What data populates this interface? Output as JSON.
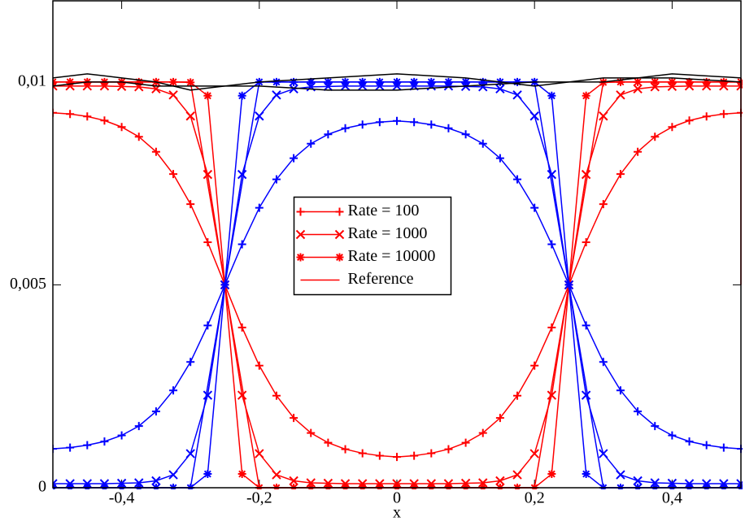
{
  "chart_data": {
    "type": "line",
    "xlabel": "x",
    "xlim": [
      -0.5,
      0.5
    ],
    "ylim": [
      0,
      0.012
    ],
    "xticks": [
      {
        "value": -0.4,
        "label": "-0,4"
      },
      {
        "value": -0.2,
        "label": "-0,2"
      },
      0,
      {
        "value": 0.2,
        "label": "0,2"
      },
      {
        "value": 0.4,
        "label": "0,4"
      }
    ],
    "yticks": [
      0,
      {
        "value": 0.005,
        "label": "0,005"
      },
      {
        "value": 0.01,
        "label": "0,01"
      }
    ],
    "legend": "center",
    "x": [
      -0.5,
      -0.475,
      -0.45,
      -0.425,
      -0.4,
      -0.375,
      -0.35,
      -0.325,
      -0.3,
      -0.275,
      -0.25,
      -0.225,
      -0.2,
      -0.175,
      -0.15,
      -0.125,
      -0.1,
      -0.075,
      -0.05,
      -0.025,
      0,
      0.025,
      0.05,
      0.075,
      0.1,
      0.125,
      0.15,
      0.175,
      0.2,
      0.225,
      0.25,
      0.275,
      0.3,
      0.325,
      0.35,
      0.375,
      0.4,
      0.425,
      0.45,
      0.475,
      0.5
    ],
    "series": [
      {
        "name": "Rate = 100",
        "color": "#ff0000",
        "marker": "plus",
        "values": [
          0.00924,
          0.00921,
          0.00915,
          0.00905,
          0.00889,
          0.00865,
          0.00828,
          0.00773,
          0.00699,
          0.00605,
          0.005,
          0.00395,
          0.00301,
          0.00227,
          0.00172,
          0.00135,
          0.00111,
          0.00095,
          0.00085,
          0.00079,
          0.00076,
          0.00079,
          0.00085,
          0.00095,
          0.00111,
          0.00135,
          0.00172,
          0.00227,
          0.00301,
          0.00395,
          0.005,
          0.00605,
          0.00699,
          0.00773,
          0.00828,
          0.00865,
          0.00889,
          0.00905,
          0.00915,
          0.00921,
          0.00924
        ]
      },
      {
        "name": "Rate = 1000",
        "color": "#ff0000",
        "marker": "x",
        "values": [
          0.0099,
          0.0099,
          0.0099,
          0.0099,
          0.00989,
          0.00988,
          0.00983,
          0.00968,
          0.00916,
          0.00772,
          0.005,
          0.00228,
          0.00084,
          0.00032,
          0.00017,
          0.00012,
          0.00011,
          0.0001,
          0.0001,
          0.0001,
          0.0001,
          0.0001,
          0.0001,
          0.0001,
          0.00011,
          0.00012,
          0.00017,
          0.00032,
          0.00084,
          0.00228,
          0.005,
          0.00772,
          0.00916,
          0.00968,
          0.00983,
          0.00988,
          0.00989,
          0.0099,
          0.0099,
          0.0099,
          0.0099
        ]
      },
      {
        "name": "Rate = 10000",
        "color": "#ff0000",
        "marker": "star",
        "values": [
          0.01,
          0.01,
          0.01,
          0.01,
          0.01,
          0.01,
          0.01,
          0.01,
          0.00999,
          0.00966,
          0.005,
          0.00034,
          0,
          0,
          0,
          0,
          0,
          0,
          0,
          0,
          0,
          0,
          0,
          0,
          0,
          0,
          0,
          0,
          0,
          0.00034,
          0.005,
          0.00966,
          0.00999,
          0.01,
          0.01,
          0.01,
          0.01,
          0.01,
          0.01,
          0.01,
          0.01
        ]
      },
      {
        "name": "Reference",
        "color": "#ff0000",
        "x": [
          -0.5,
          -0.3,
          -0.2,
          0.2,
          0.3,
          0.5,
          0.5
        ],
        "values": [
          0.01,
          0.01,
          0,
          0,
          0.01,
          0.01,
          0.005
        ]
      },
      {
        "color": "#0000ff",
        "marker": "plus",
        "values": [
          0.00096,
          0.00099,
          0.00105,
          0.00114,
          0.00129,
          0.00152,
          0.00188,
          0.0024,
          0.0031,
          0.004,
          0.005,
          0.006,
          0.0069,
          0.0076,
          0.00812,
          0.00848,
          0.00871,
          0.00886,
          0.00895,
          0.00901,
          0.00904,
          0.00901,
          0.00895,
          0.00886,
          0.00871,
          0.00848,
          0.00812,
          0.0076,
          0.0069,
          0.006,
          0.005,
          0.004,
          0.0031,
          0.0024,
          0.00188,
          0.00152,
          0.00129,
          0.00114,
          0.00105,
          0.00099,
          0.00096
        ]
      },
      {
        "color": "#0000ff",
        "marker": "x",
        "values": [
          0.0001,
          0.0001,
          0.0001,
          0.0001,
          0.00011,
          0.00012,
          0.00017,
          0.00032,
          0.00084,
          0.00228,
          0.005,
          0.00772,
          0.00916,
          0.00968,
          0.00983,
          0.00988,
          0.00989,
          0.0099,
          0.0099,
          0.0099,
          0.0099,
          0.0099,
          0.0099,
          0.0099,
          0.00989,
          0.00988,
          0.00983,
          0.00968,
          0.00916,
          0.00772,
          0.005,
          0.00228,
          0.00084,
          0.00032,
          0.00017,
          0.00012,
          0.00011,
          0.0001,
          0.0001,
          0.0001,
          0.0001
        ]
      },
      {
        "color": "#0000ff",
        "marker": "star",
        "values": [
          0,
          0,
          0,
          0,
          0,
          0,
          0,
          0,
          0,
          0.00034,
          0.005,
          0.00966,
          0.01,
          0.01,
          0.01,
          0.01,
          0.01,
          0.01,
          0.01,
          0.01,
          0.01,
          0.01,
          0.01,
          0.01,
          0.01,
          0.01,
          0.01,
          0.01,
          0.01,
          0.00966,
          0.005,
          0.00034,
          0,
          0,
          0,
          0,
          0,
          0,
          0,
          0,
          0
        ]
      },
      {
        "color": "#0000ff",
        "x": [
          -0.5,
          -0.3,
          -0.2,
          0.2,
          0.3,
          0.5
        ],
        "values": [
          0,
          0,
          0.01,
          0.01,
          0,
          0
        ]
      },
      {
        "color": "#000000",
        "x": [
          -0.5,
          -0.45,
          -0.4,
          -0.35,
          -0.3,
          -0.2,
          -0.1,
          0,
          0.1,
          0.2,
          0.3,
          0.4,
          0.5
        ],
        "values": [
          0.0101,
          0.0102,
          0.0101,
          0.01,
          0.0098,
          0.01,
          0.0101,
          0.0102,
          0.0101,
          0.0099,
          0.0101,
          0.0101,
          0.01
        ]
      },
      {
        "color": "#000000",
        "x": [
          -0.5,
          -0.45,
          -0.4,
          -0.35,
          -0.3,
          -0.2,
          -0.1,
          0,
          0.1,
          0.2,
          0.3,
          0.4,
          0.5
        ],
        "values": [
          0.0099,
          0.01,
          0.01,
          0.0099,
          0.0099,
          0.0099,
          0.0098,
          0.0098,
          0.0099,
          0.01,
          0.01,
          0.0102,
          0.0101
        ]
      }
    ]
  }
}
